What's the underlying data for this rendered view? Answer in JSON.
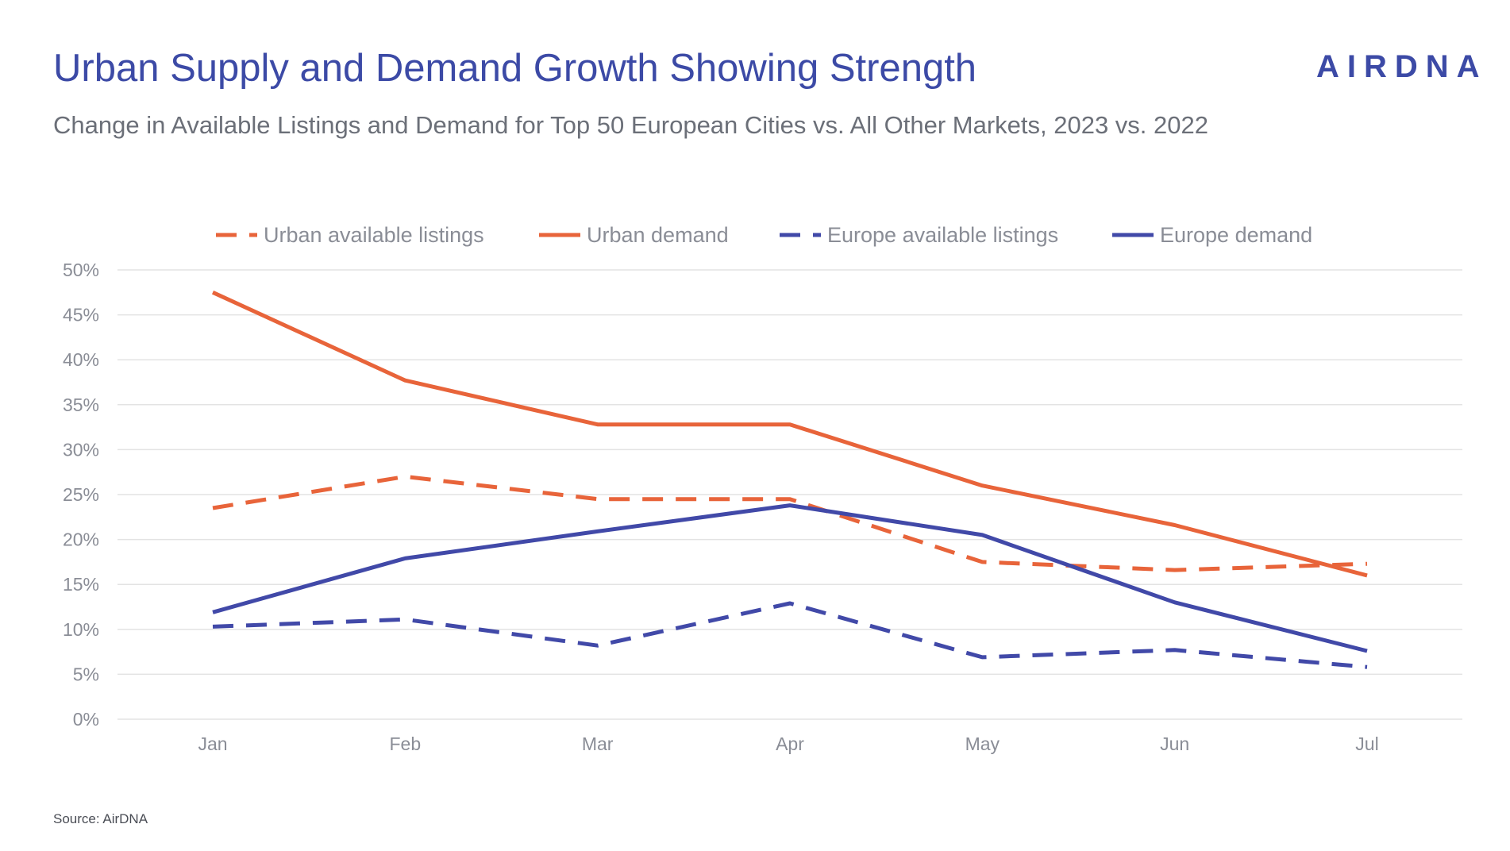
{
  "header": {
    "title": "Urban Supply and Demand Growth Showing Strength",
    "subtitle": "Change in Available Listings and Demand for Top 50 European Cities vs. All Other Markets, 2023 vs. 2022",
    "logo_text": "AIRDNA"
  },
  "footer": {
    "source": "Source: AirDNA"
  },
  "colors": {
    "orange": "#e8643a",
    "blue": "#4149a8",
    "grid": "#e3e3e3",
    "text": "#8a8d96",
    "title": "#3c4aa6"
  },
  "chart_data": {
    "type": "line",
    "title": "Urban Supply and Demand Growth Showing Strength",
    "subtitle": "Change in Available Listings and Demand for Top 50 European Cities vs. All Other Markets, 2023 vs. 2022",
    "xlabel": "",
    "ylabel": "",
    "categories": [
      "Jan",
      "Feb",
      "Mar",
      "Apr",
      "May",
      "Jun",
      "Jul"
    ],
    "ylim": [
      0,
      0.5
    ],
    "y_ticks": [
      0,
      0.05,
      0.1,
      0.15,
      0.2,
      0.25,
      0.3,
      0.35,
      0.4,
      0.45,
      0.5
    ],
    "y_tick_labels": [
      "0%",
      "5%",
      "10%",
      "15%",
      "20%",
      "25%",
      "30%",
      "35%",
      "40%",
      "45%",
      "50%"
    ],
    "grid": true,
    "legend_position": "top",
    "series": [
      {
        "name": "Urban available listings",
        "color": "#e8643a",
        "dashed": true,
        "values": [
          0.235,
          0.27,
          0.245,
          0.245,
          0.175,
          0.166,
          0.173
        ]
      },
      {
        "name": "Urban demand",
        "color": "#e8643a",
        "dashed": false,
        "values": [
          0.475,
          0.377,
          0.328,
          0.328,
          0.26,
          0.216,
          0.16
        ]
      },
      {
        "name": "Europe available listings",
        "color": "#4149a8",
        "dashed": true,
        "values": [
          0.103,
          0.111,
          0.082,
          0.129,
          0.069,
          0.077,
          0.058
        ]
      },
      {
        "name": "Europe demand",
        "color": "#4149a8",
        "dashed": false,
        "values": [
          0.119,
          0.179,
          0.209,
          0.238,
          0.205,
          0.13,
          0.076
        ]
      }
    ]
  }
}
